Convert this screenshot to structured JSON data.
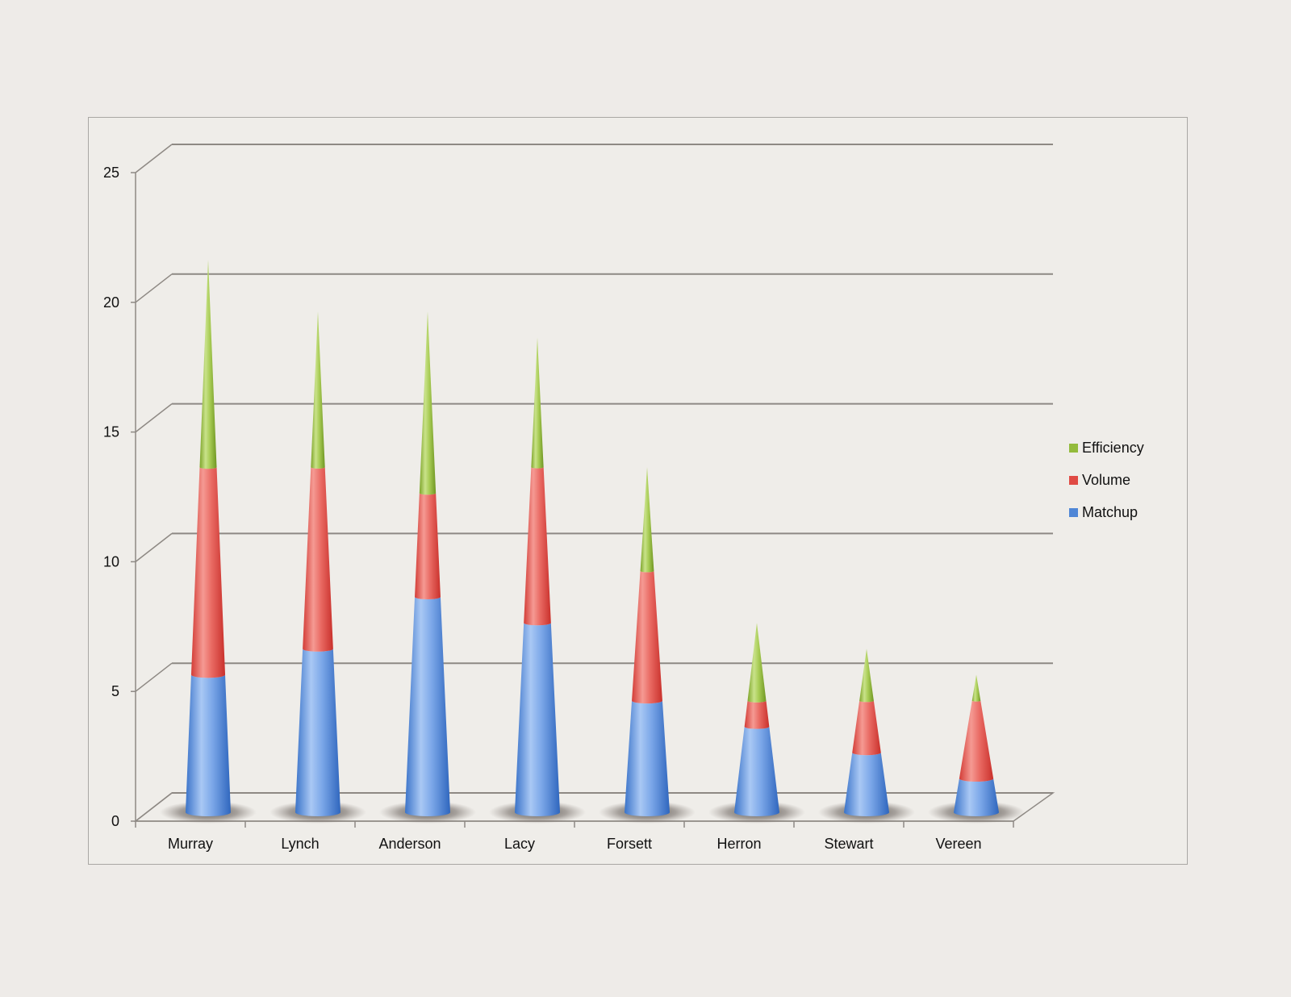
{
  "chart_data": {
    "type": "bar",
    "subtype": "3d-stacked-cone",
    "categories": [
      "Murray",
      "Lynch",
      "Anderson",
      "Lacy",
      "Forsett",
      "Herron",
      "Stewart",
      "Vereen"
    ],
    "series": [
      {
        "name": "Matchup",
        "color": "#4f86d6",
        "values": [
          5.3,
          6.3,
          8.3,
          7.3,
          4.3,
          3.3,
          2.3,
          1.3
        ]
      },
      {
        "name": "Volume",
        "color": "#e04a44",
        "values": [
          8.0,
          7.0,
          4.0,
          6.0,
          5.0,
          1.0,
          2.0,
          3.0
        ]
      },
      {
        "name": "Efficiency",
        "color": "#93bb3c",
        "values": [
          8.0,
          6.0,
          7.0,
          5.0,
          4.0,
          3.0,
          2.0,
          1.0
        ]
      }
    ],
    "yticks": [
      0,
      5,
      10,
      15,
      20,
      25
    ],
    "ylim": [
      0,
      25
    ],
    "grid": true,
    "legend": "right",
    "title": "",
    "xlabel": "",
    "ylabel": ""
  }
}
